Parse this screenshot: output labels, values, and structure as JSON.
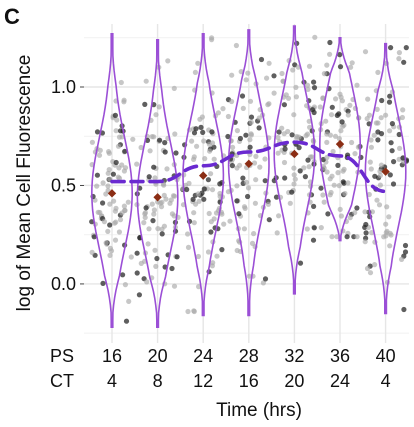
{
  "panel_label": "C",
  "chart_data": {
    "type": "violin-scatter",
    "ylabel": "log of Mean Cell Fluorescence",
    "xlabel": "Time (hrs)",
    "x_rows": [
      {
        "name": "PS",
        "labels": [
          "16",
          "20",
          "24",
          "28",
          "32",
          "36",
          "40"
        ]
      },
      {
        "name": "CT",
        "labels": [
          "4",
          "8",
          "12",
          "16",
          "20",
          "24",
          "4"
        ]
      }
    ],
    "ylim": [
      -0.3,
      1.32
    ],
    "yticks": [
      0.0,
      0.5,
      1.0
    ],
    "ytick_labels": [
      "0.0",
      "0.5",
      "1.0"
    ],
    "grid": true,
    "groups": [
      {
        "ps": "16",
        "ct": "4",
        "mean": 0.46,
        "min": -0.22,
        "max": 1.27
      },
      {
        "ps": "20",
        "ct": "8",
        "mean": 0.44,
        "min": -0.22,
        "max": 1.24
      },
      {
        "ps": "24",
        "ct": "12",
        "mean": 0.55,
        "min": -0.16,
        "max": 1.27
      },
      {
        "ps": "28",
        "ct": "16",
        "mean": 0.61,
        "min": -0.16,
        "max": 1.29
      },
      {
        "ps": "32",
        "ct": "20",
        "mean": 0.66,
        "min": -0.05,
        "max": 1.31
      },
      {
        "ps": "36",
        "ct": "24",
        "mean": 0.71,
        "min": 0.22,
        "max": 1.25
      },
      {
        "ps": "40",
        "ct": "4",
        "mean": 0.57,
        "min": -0.15,
        "max": 1.22
      }
    ],
    "trend": {
      "x_group_index": [
        0,
        1,
        2,
        3,
        4,
        5,
        6
      ],
      "y": [
        0.52,
        0.52,
        0.6,
        0.67,
        0.72,
        0.65,
        0.47
      ]
    },
    "colors": {
      "violin": "#9b4fd6",
      "trend": "#6a2ad0",
      "mean": "#8b2d14",
      "point_light": "#a9a9a9",
      "point_dark": "#2a2a2a",
      "grid": "#e6e6e6"
    }
  }
}
